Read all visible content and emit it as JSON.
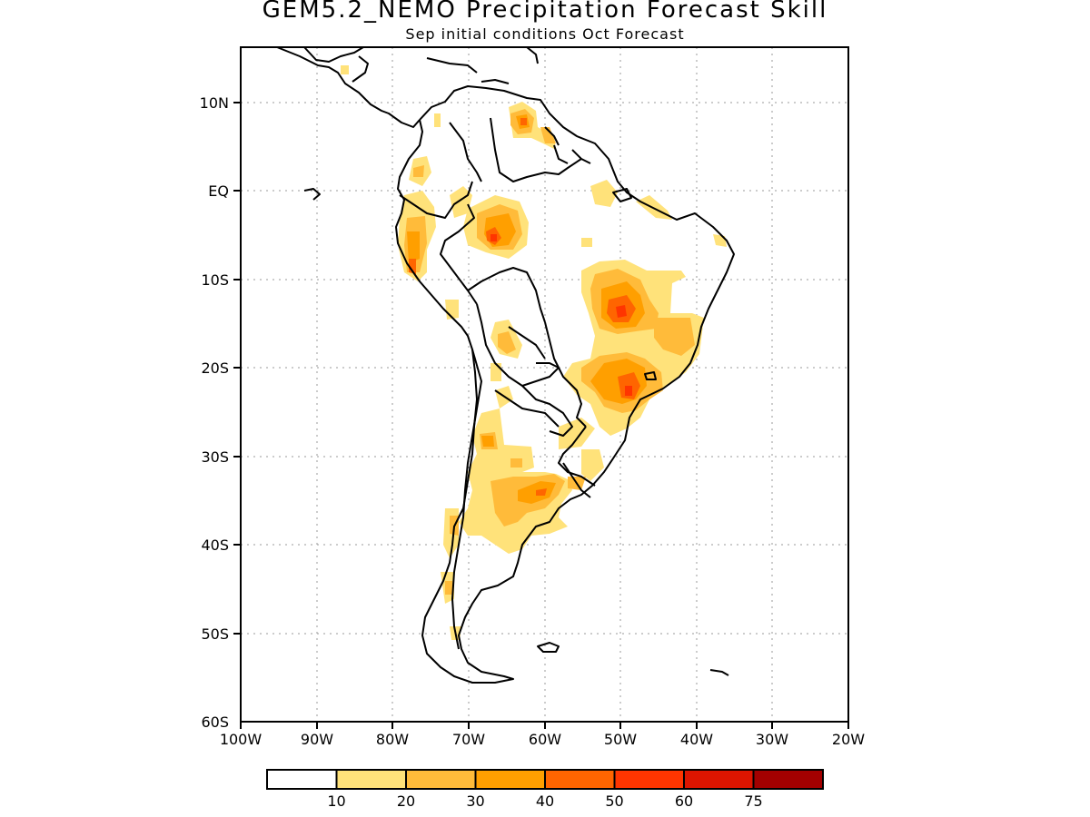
{
  "title": "GEM5.2_NEMO Precipitation Forecast Skill",
  "subtitle": "Sep initial conditions  Oct Forecast",
  "axes": {
    "lat_labels": [
      "10N",
      "EQ",
      "10S",
      "20S",
      "30S",
      "40S",
      "50S",
      "60S"
    ],
    "lon_labels": [
      "100W",
      "90W",
      "80W",
      "70W",
      "60W",
      "50W",
      "40W",
      "30W",
      "20W"
    ]
  },
  "colorbar": {
    "labels": [
      "10",
      "20",
      "30",
      "40",
      "50",
      "60",
      "75"
    ],
    "colors": [
      "#ffffff",
      "#ffe27a",
      "#ffbb3a",
      "#ff9f00",
      "#ff6500",
      "#ff3500",
      "#dd1500",
      "#a30000"
    ]
  },
  "map_colors": {
    "land_outline": "#000000",
    "grid": "#9a9a9a"
  }
}
